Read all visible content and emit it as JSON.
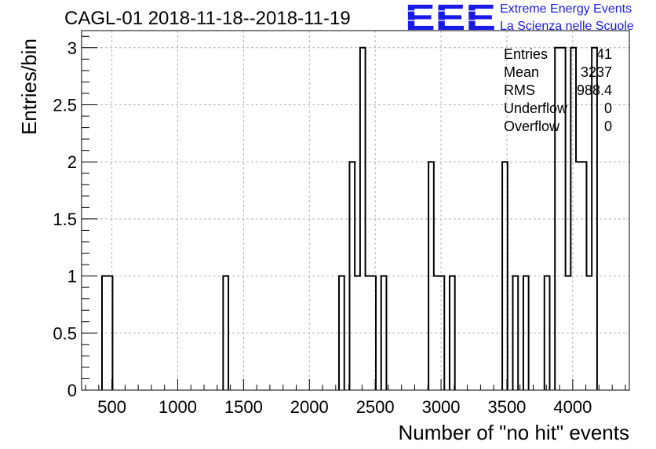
{
  "chart_data": {
    "type": "bar",
    "title": "CAGL-01 2018-11-18--2018-11-19",
    "xlabel": "Number of \"no hit\" events",
    "ylabel": "Entries/bin",
    "xlim": [
      270,
      4430
    ],
    "ylim": [
      0,
      3.15
    ],
    "xticks": [
      500,
      1000,
      1500,
      2000,
      2500,
      3000,
      3500,
      4000
    ],
    "yticks": [
      0,
      0.5,
      1,
      1.5,
      2,
      2.5,
      3
    ],
    "ytick_labels": [
      "0",
      "0.5",
      "1",
      "1.5",
      "2",
      "2.5",
      "3"
    ],
    "grid": true,
    "bin_width": 40,
    "bins": [
      {
        "x0": 425,
        "value": 1
      },
      {
        "x0": 465,
        "value": 1
      },
      {
        "x0": 1345,
        "value": 1
      },
      {
        "x0": 2225,
        "value": 1
      },
      {
        "x0": 2305,
        "value": 2
      },
      {
        "x0": 2345,
        "value": 1
      },
      {
        "x0": 2385,
        "value": 3
      },
      {
        "x0": 2425,
        "value": 1
      },
      {
        "x0": 2465,
        "value": 1
      },
      {
        "x0": 2545,
        "value": 1
      },
      {
        "x0": 2905,
        "value": 2
      },
      {
        "x0": 2945,
        "value": 1
      },
      {
        "x0": 2985,
        "value": 1
      },
      {
        "x0": 3065,
        "value": 1
      },
      {
        "x0": 3465,
        "value": 2
      },
      {
        "x0": 3545,
        "value": 1
      },
      {
        "x0": 3625,
        "value": 1
      },
      {
        "x0": 3785,
        "value": 1
      },
      {
        "x0": 3865,
        "value": 3
      },
      {
        "x0": 3905,
        "value": 3
      },
      {
        "x0": 3945,
        "value": 1
      },
      {
        "x0": 3985,
        "value": 3
      },
      {
        "x0": 4025,
        "value": 2
      },
      {
        "x0": 4065,
        "value": 2
      },
      {
        "x0": 4105,
        "value": 1
      },
      {
        "x0": 4145,
        "value": 3
      }
    ],
    "stats": [
      {
        "label": "Entries",
        "value": "41"
      },
      {
        "label": "Mean",
        "value": "3237"
      },
      {
        "label": "RMS",
        "value": "988.4"
      },
      {
        "label": "Underflow",
        "value": "0"
      },
      {
        "label": "Overflow",
        "value": "0"
      }
    ],
    "line_color": "#000000",
    "grid_color": "#b4b4b4"
  },
  "logo": {
    "mark": "EEE",
    "line1": "Extreme Energy Events",
    "line2": "La Scienza nelle Scuole",
    "color": "#1a1ae6"
  }
}
